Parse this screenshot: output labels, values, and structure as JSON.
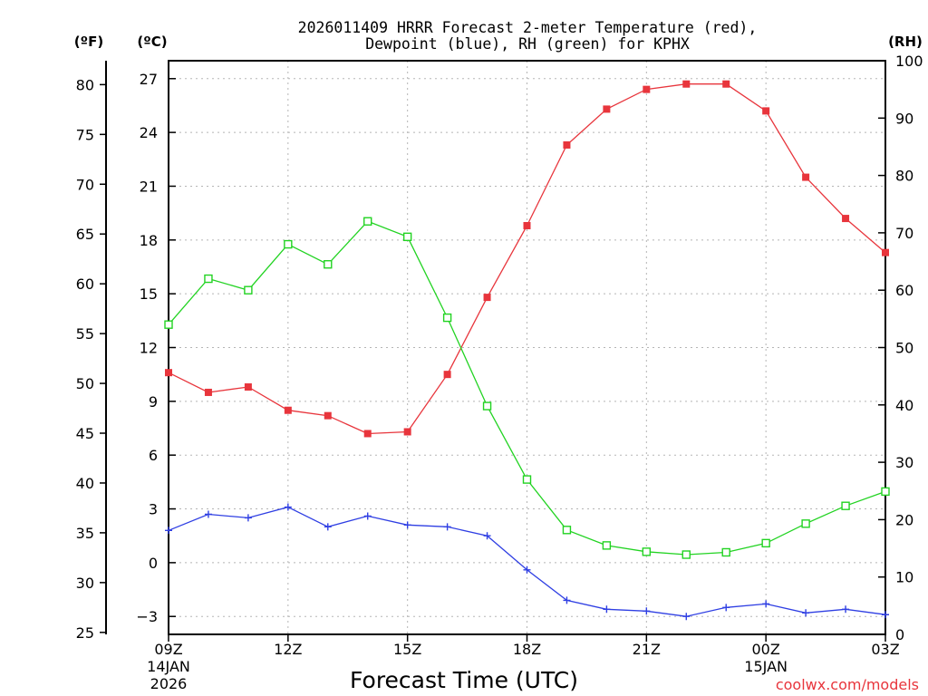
{
  "chart_data": {
    "type": "line",
    "title_line1": "2026011409 HRRR Forecast 2-meter Temperature (red),",
    "title_line2": "Dewpoint (blue), RH (green) for KPHX",
    "xlabel": "Forecast Time (UTC)",
    "left_outer_axis_label": "(ºF)",
    "left_inner_axis_label": "(ºC)",
    "right_axis_label": "(RH)",
    "credit": "coolwx.com/models",
    "x_hours": [
      0,
      1,
      2,
      3,
      4,
      5,
      6,
      7,
      8,
      9,
      10,
      11,
      12,
      13,
      14,
      15,
      16,
      17,
      18
    ],
    "xlim": [
      0,
      18
    ],
    "x_ticks": [
      {
        "hour": 0,
        "line1": "09Z",
        "line2": "14JAN",
        "line3": "2026"
      },
      {
        "hour": 3,
        "line1": "12Z",
        "line2": "",
        "line3": ""
      },
      {
        "hour": 6,
        "line1": "15Z",
        "line2": "",
        "line3": ""
      },
      {
        "hour": 9,
        "line1": "18Z",
        "line2": "",
        "line3": ""
      },
      {
        "hour": 12,
        "line1": "21Z",
        "line2": "",
        "line3": ""
      },
      {
        "hour": 15,
        "line1": "00Z",
        "line2": "15JAN",
        "line3": ""
      },
      {
        "hour": 18,
        "line1": "03Z",
        "line2": "",
        "line3": ""
      }
    ],
    "ylim_c": [
      -4,
      28
    ],
    "yticks_c": [
      "27",
      "24",
      "21",
      "18",
      "15",
      "12",
      "9",
      "6",
      "3",
      "0",
      "−3"
    ],
    "yticks_f": [
      "80",
      "75",
      "70",
      "65",
      "60",
      "55",
      "50",
      "45",
      "40",
      "35",
      "30",
      "25"
    ],
    "ylim_rh": [
      0,
      100
    ],
    "yticks_rh": [
      "100",
      "90",
      "80",
      "70",
      "60",
      "50",
      "40",
      "30",
      "20",
      "10",
      "0"
    ],
    "series": [
      {
        "name": "Temperature",
        "color": "#e8353c",
        "marker": "filled-square",
        "axis": "celsius",
        "values": [
          10.6,
          9.5,
          9.8,
          8.5,
          8.2,
          7.2,
          7.3,
          10.5,
          14.8,
          18.8,
          23.3,
          25.3,
          26.4,
          26.7,
          26.7,
          25.2,
          21.5,
          19.2,
          17.3
        ]
      },
      {
        "name": "Dewpoint",
        "color": "#2f3fe3",
        "marker": "plus",
        "axis": "celsius",
        "values": [
          1.8,
          2.7,
          2.5,
          3.1,
          2.0,
          2.6,
          2.1,
          2.0,
          1.5,
          -0.4,
          -2.1,
          -2.6,
          -2.7,
          -3.0,
          -2.5,
          -2.3,
          -2.8,
          -2.6,
          -2.9
        ]
      },
      {
        "name": "Relative Humidity",
        "color": "#22d322",
        "marker": "open-square",
        "axis": "rh",
        "values": [
          54,
          62,
          60,
          68,
          64.5,
          72,
          69.3,
          55.2,
          39.8,
          27,
          18.2,
          15.5,
          14.4,
          13.9,
          14.3,
          15.9,
          19.3,
          22.4,
          24.9
        ]
      }
    ]
  }
}
